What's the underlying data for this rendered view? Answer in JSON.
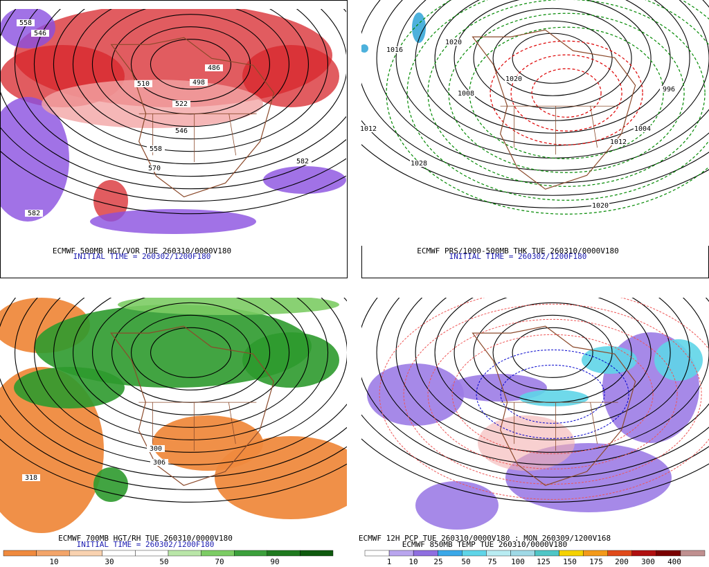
{
  "panels": [
    {
      "caption": "ECMWF 500MB HGT/VOR TUE 260310/0000V180",
      "subcaption": "INITIAL TIME = 260302/1200F180",
      "contour_labels": [
        558,
        546,
        510,
        498,
        486,
        522,
        546,
        558,
        570,
        582,
        582
      ]
    },
    {
      "caption": "ECMWF PRS/1000-500MB THK TUE 260310/0000V180",
      "subcaption": "INITIAL TIME = 260302/1200F180",
      "contour_labels": [
        1016,
        1020,
        1008,
        1020,
        1028,
        1012,
        996,
        1004,
        1012,
        1020
      ]
    },
    {
      "caption": "ECMWF 700MB HGT/RH TUE 260310/0000V180",
      "subcaption": "INITIAL TIME = 260302/1200F180",
      "contour_labels": [
        318,
        306,
        300
      ],
      "colorbar": [
        10,
        30,
        50,
        70,
        90
      ]
    },
    {
      "caption": "ECMWF 12H PCP TUE 260310/0000V180 : MON 260309/1200V168",
      "subcaption": "ECMWF 850MB TEMP TUE 260310/0000V180",
      "contour_labels": [],
      "colorbar": [
        1,
        10,
        25,
        50,
        75,
        100,
        125,
        150,
        175,
        200,
        300,
        400
      ]
    }
  ]
}
